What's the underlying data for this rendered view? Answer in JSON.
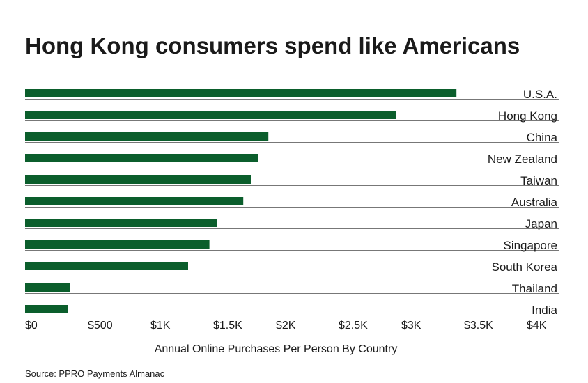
{
  "chart_data": {
    "type": "barh",
    "title": "Hong Kong consumers spend like Americans",
    "categories": [
      "U.S.A.",
      "Hong Kong",
      "China",
      "New Zealand",
      "Taiwan",
      "Australia",
      "Japan",
      "Singapore",
      "South Korea",
      "Thailand",
      "India"
    ],
    "values": [
      3440,
      2960,
      1940,
      1860,
      1800,
      1740,
      1530,
      1470,
      1300,
      360,
      340
    ],
    "color": "#0b5e2c",
    "xlim": [
      0,
      4000
    ],
    "xticks": [
      {
        "value": 0,
        "label": "$0"
      },
      {
        "value": 500,
        "label": "$500"
      },
      {
        "value": 1000,
        "label": "$1K"
      },
      {
        "value": 1500,
        "label": "$1.5K"
      },
      {
        "value": 2000,
        "label": "$2K"
      },
      {
        "value": 2500,
        "label": "$2.5K"
      },
      {
        "value": 3000,
        "label": "$3K"
      },
      {
        "value": 3500,
        "label": "$3.5K"
      },
      {
        "value": 4000,
        "label": "$4K"
      }
    ],
    "xlabel": "Annual Online Purchases Per Person By Country",
    "source": "Source: PPRO Payments Almanac"
  }
}
